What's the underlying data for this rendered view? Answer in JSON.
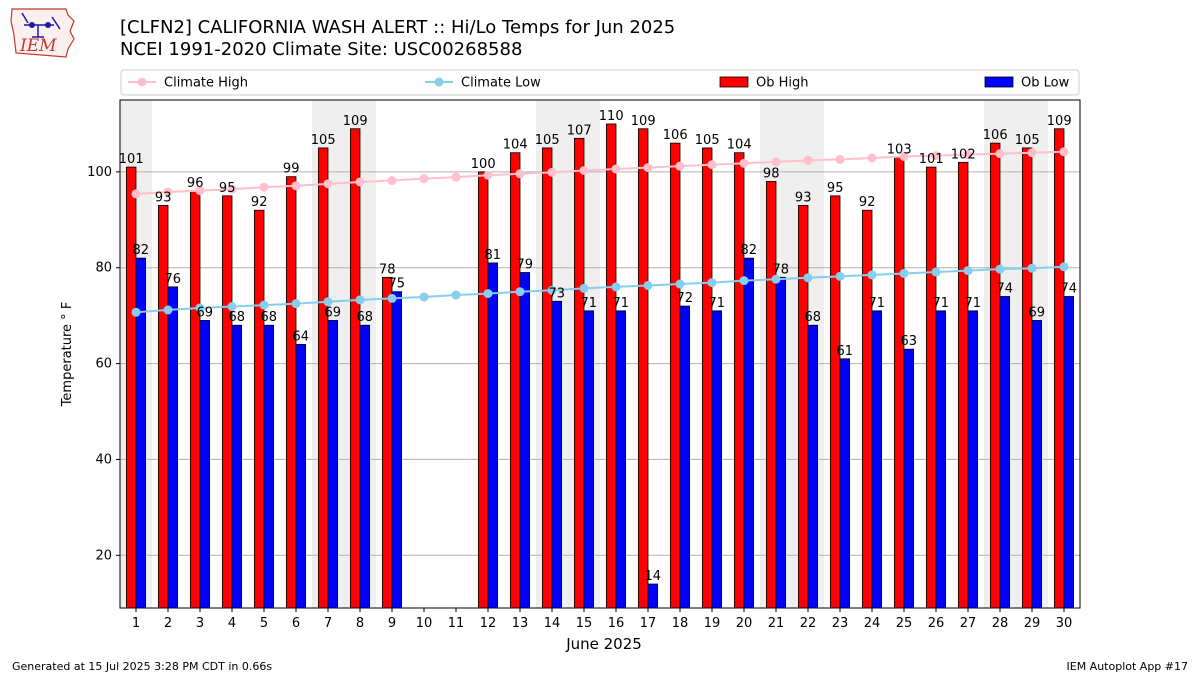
{
  "logo": {
    "text": "IEM",
    "colors": {
      "outline": "#c0392b",
      "icon": "#1a1aa6"
    }
  },
  "header": {
    "title_line1": "[CLFN2] CALIFORNIA WASH ALERT :: Hi/Lo Temps for Jun 2025",
    "title_line2": "NCEI 1991-2020 Climate Site: USC00268588"
  },
  "footer": {
    "generated": "Generated at 15 Jul 2025 3:28 PM CDT in 0.66s",
    "app": "IEM Autoplot App #17"
  },
  "chart_data": {
    "type": "bar",
    "xlabel": "June 2025",
    "ylabel": "Temperature ° F",
    "ylim": [
      9,
      115
    ],
    "yticks": [
      20,
      40,
      60,
      80,
      100
    ],
    "grid": "horizontal",
    "legend_placement": "top",
    "categories": [
      "1",
      "2",
      "3",
      "4",
      "5",
      "6",
      "7",
      "8",
      "9",
      "10",
      "11",
      "12",
      "13",
      "14",
      "15",
      "16",
      "17",
      "18",
      "19",
      "20",
      "21",
      "22",
      "23",
      "24",
      "25",
      "26",
      "27",
      "28",
      "29",
      "30"
    ],
    "weekend_shaded_days": [
      1,
      7,
      8,
      14,
      15,
      21,
      22,
      28,
      29
    ],
    "series": [
      {
        "name": "Ob High",
        "kind": "bar",
        "color": "#ff0000",
        "values": [
          101,
          93,
          96,
          95,
          92,
          99,
          105,
          109,
          78,
          null,
          null,
          100,
          104,
          105,
          107,
          110,
          109,
          106,
          105,
          104,
          98,
          93,
          95,
          92,
          103,
          101,
          102,
          106,
          105,
          109
        ]
      },
      {
        "name": "Ob Low",
        "kind": "bar",
        "color": "#0000ff",
        "values": [
          82,
          76,
          69,
          68,
          68,
          64,
          69,
          68,
          75,
          null,
          null,
          81,
          79,
          73,
          71,
          71,
          14,
          72,
          71,
          82,
          78,
          68,
          61,
          71,
          63,
          71,
          71,
          74,
          69,
          74
        ]
      },
      {
        "name": "Climate High",
        "kind": "line",
        "color": "#ffc0cb",
        "values": [
          95.4,
          95.8,
          96.1,
          96.4,
          96.8,
          97.1,
          97.5,
          97.9,
          98.2,
          98.6,
          98.9,
          99.3,
          99.6,
          99.9,
          100.3,
          100.6,
          100.9,
          101.2,
          101.5,
          101.8,
          102.1,
          102.4,
          102.6,
          102.9,
          103.2,
          103.4,
          103.6,
          103.8,
          104.0,
          104.2
        ]
      },
      {
        "name": "Climate Low",
        "kind": "line",
        "color": "#87ceeb",
        "values": [
          70.7,
          71.2,
          71.6,
          71.9,
          72.2,
          72.5,
          72.9,
          73.3,
          73.6,
          73.9,
          74.3,
          74.6,
          75.0,
          75.3,
          75.7,
          76.0,
          76.3,
          76.6,
          76.9,
          77.3,
          77.6,
          77.9,
          78.2,
          78.5,
          78.8,
          79.1,
          79.4,
          79.7,
          79.9,
          80.2
        ]
      }
    ]
  }
}
